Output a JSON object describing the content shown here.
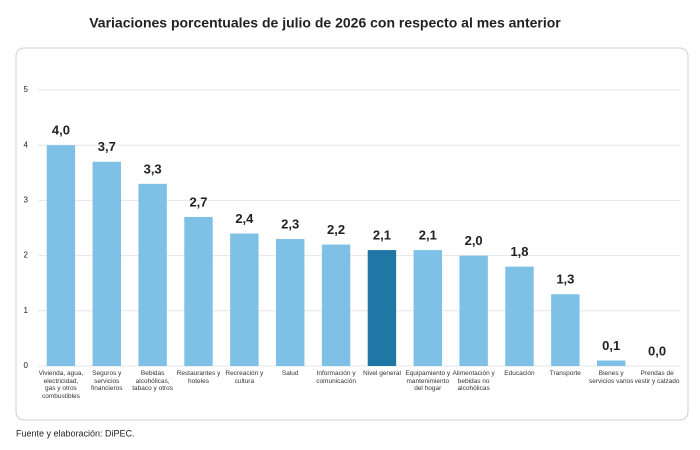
{
  "chart_data": {
    "type": "bar",
    "title": "Variaciones porcentuales de julio de 2026 con respecto al mes anterior",
    "categories": [
      "Vivienda, agua, electricidad, gas y otros combustibles",
      "Seguros y servicios financieros",
      "Bebidas alcohólicas, tabaco y otros",
      "Restaurantes y hoteles",
      "Recreación y cultura",
      "Salud",
      "Información y comunicación",
      "Nivel general",
      "Equipamiento y mantenimiento del hogar",
      "Alimentación y bebidas no alcohólicas",
      "Educación",
      "Transporte",
      "Bienes y servicios varios",
      "Prendas de vestir y calzado"
    ],
    "values": [
      4.0,
      3.7,
      3.3,
      2.7,
      2.4,
      2.3,
      2.2,
      2.1,
      2.1,
      2.0,
      1.8,
      1.3,
      0.1,
      0.0
    ],
    "value_labels": [
      "4,0",
      "3,7",
      "3,3",
      "2,7",
      "2,4",
      "2,3",
      "2,2",
      "2,1",
      "2,1",
      "2,0",
      "1,8",
      "1,3",
      "0,1",
      "0,0"
    ],
    "colors": [
      "#7fc1e6",
      "#7fc1e6",
      "#7fc1e6",
      "#7fc1e6",
      "#7fc1e6",
      "#7fc1e6",
      "#7fc1e6",
      "#1f77a6",
      "#7fc1e6",
      "#7fc1e6",
      "#7fc1e6",
      "#7fc1e6",
      "#7fc1e6",
      "#7fc1e6"
    ],
    "ylim": [
      0,
      5
    ],
    "yticks": [
      0,
      1,
      2,
      3,
      4,
      5
    ],
    "grid": true,
    "source": "Fuente y elaboración: DiPEC."
  }
}
